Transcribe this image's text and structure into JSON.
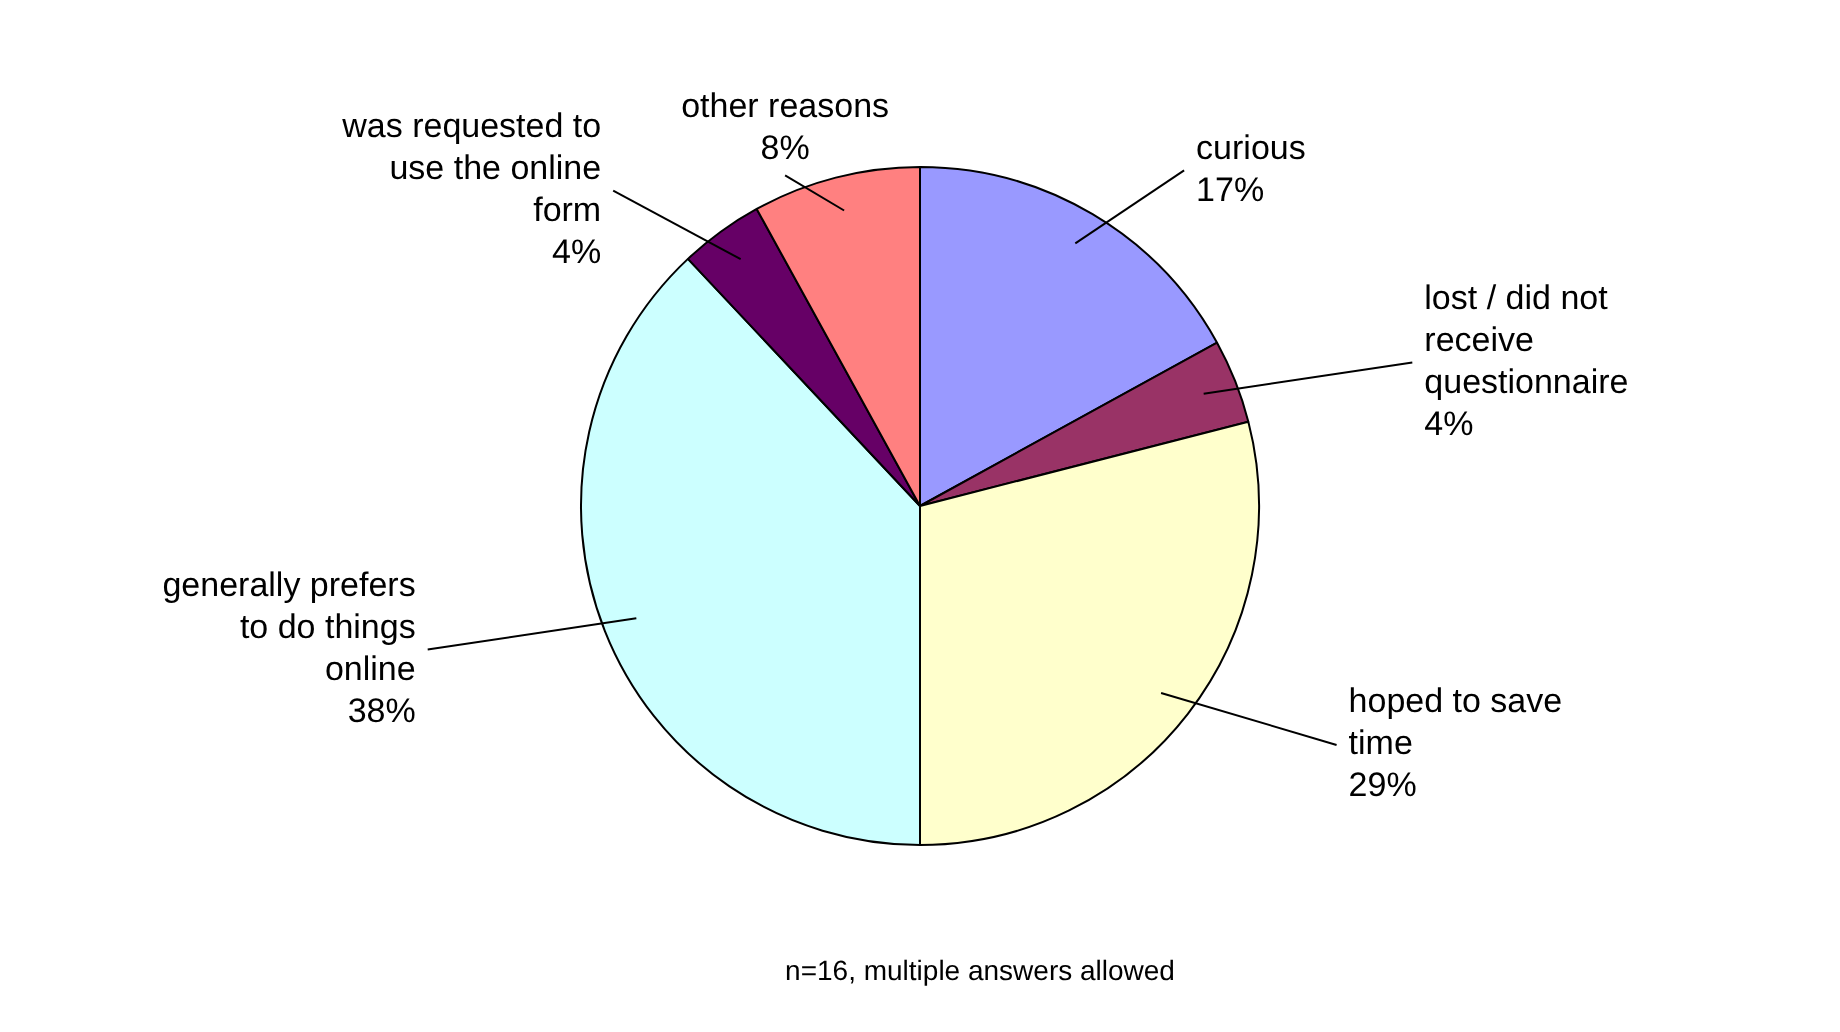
{
  "chart_data": {
    "type": "pie",
    "categories": [
      "curious",
      "lost / did not\nreceive\nquestionnaire",
      "hoped to save\ntime",
      "generally prefers\nto do things\nonline",
      "was requested to\nuse the online\nform",
      "other reasons"
    ],
    "values": [
      17,
      4,
      29,
      38,
      4,
      8
    ],
    "value_labels": [
      "17%",
      "4%",
      "29%",
      "38%",
      "4%",
      "8%"
    ],
    "colors": [
      "#9999ff",
      "#993366",
      "#ffffcc",
      "#ccffff",
      "#660066",
      "#ff8080"
    ],
    "legend": false,
    "annotations": [
      "n=16, multiple answers allowed"
    ]
  }
}
